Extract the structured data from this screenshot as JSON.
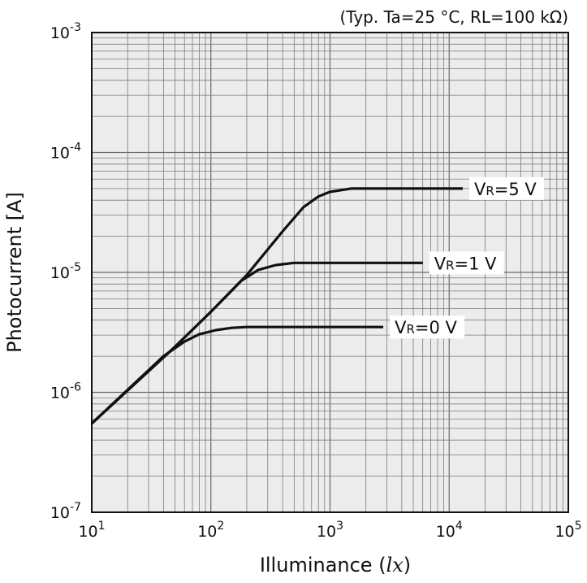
{
  "chart_data": {
    "type": "line",
    "title": "",
    "condition_note": "(Typ. Ta=25 °C, RL=100 kΩ)",
    "xlabel_main": "Illuminance (",
    "xlabel_unit": "lx",
    "xlabel_close": ")",
    "ylabel": "Photocurrent [A]",
    "x_scale": "log",
    "y_scale": "log",
    "xlim": [
      10,
      100000
    ],
    "ylim": [
      1e-07,
      0.001
    ],
    "grid": true,
    "x_ticks": [
      {
        "base": "10",
        "exp": "1"
      },
      {
        "base": "10",
        "exp": "2"
      },
      {
        "base": "10",
        "exp": "3"
      },
      {
        "base": "10",
        "exp": "4"
      },
      {
        "base": "10",
        "exp": "5"
      }
    ],
    "y_ticks": [
      {
        "base": "10",
        "exp": "-3"
      },
      {
        "base": "10",
        "exp": "-4"
      },
      {
        "base": "10",
        "exp": "-5"
      },
      {
        "base": "10",
        "exp": "-6"
      },
      {
        "base": "10",
        "exp": "-7"
      }
    ],
    "series": [
      {
        "name": "VR=5 V",
        "label_v": "V",
        "label_sub": "R",
        "label_rest": "=5 V",
        "x": [
          10,
          50,
          100,
          200,
          400,
          600,
          800,
          1000,
          1500,
          2000,
          5000,
          13000
        ],
        "y": [
          5.5e-07,
          2.4e-06,
          4.7e-06,
          9.5e-06,
          2.2e-05,
          3.5e-05,
          4.3e-05,
          4.7e-05,
          5e-05,
          5e-05,
          5e-05,
          5e-05
        ]
      },
      {
        "name": "VR=1 V",
        "label_v": "V",
        "label_sub": "R",
        "label_rest": "=1 V",
        "x": [
          10,
          50,
          100,
          180,
          250,
          350,
          500,
          700,
          1000,
          6000
        ],
        "y": [
          5.5e-07,
          2.4e-06,
          4.7e-06,
          8.5e-06,
          1.05e-05,
          1.15e-05,
          1.2e-05,
          1.2e-05,
          1.2e-05,
          1.2e-05
        ]
      },
      {
        "name": "VR=0 V",
        "label_v": "V",
        "label_sub": "R",
        "label_rest": "=0 V",
        "x": [
          10,
          40,
          60,
          80,
          110,
          150,
          200,
          300,
          2800
        ],
        "y": [
          5.5e-07,
          2e-06,
          2.65e-06,
          3.05e-06,
          3.3e-06,
          3.45e-06,
          3.5e-06,
          3.5e-06,
          3.5e-06
        ]
      }
    ]
  }
}
